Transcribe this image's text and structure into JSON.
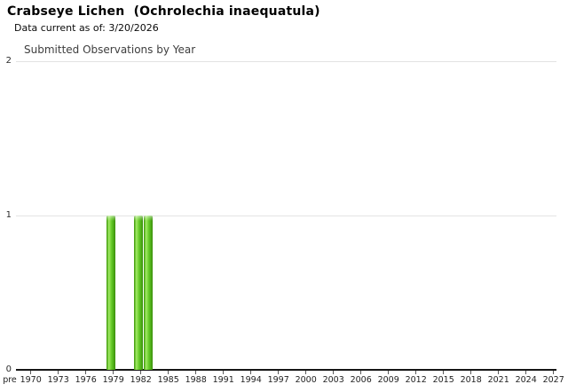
{
  "page": {
    "title": "Crabseye Lichen  (Ochrolechia inaequatula)",
    "subtitle": "Data current as of: 3/20/2026"
  },
  "chart_data": {
    "type": "bar",
    "title": "Submitted Observations by Year",
    "xlabel": "",
    "ylabel": "",
    "x_tick_labels": [
      "pre",
      "1970",
      "1973",
      "1976",
      "1979",
      "1982",
      "1985",
      "1988",
      "1991",
      "1994",
      "1997",
      "2000",
      "2003",
      "2006",
      "2009",
      "2012",
      "2015",
      "2018",
      "2021",
      "2024",
      "2027"
    ],
    "y_ticks": [
      0,
      1,
      2
    ],
    "ylim": [
      0,
      2
    ],
    "grid": true,
    "legend": false,
    "bars": [
      {
        "year": 1979,
        "count": 1
      },
      {
        "year": 1982,
        "count": 1
      },
      {
        "year": 1983,
        "count": 1
      }
    ],
    "bar_color_main": "#68cb2b",
    "bar_color_highlight": "#a4e96a",
    "bar_color_edge": "#3f9410",
    "gridline_color": "#e3e3e3",
    "axis_color": "#161616"
  }
}
